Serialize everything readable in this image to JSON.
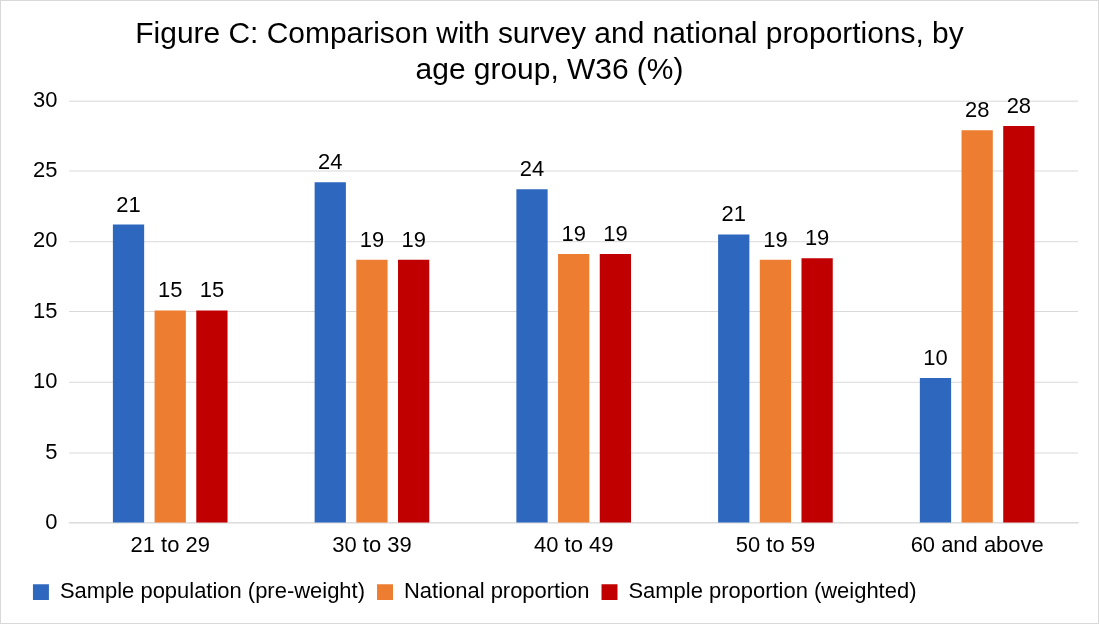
{
  "chart_data": {
    "type": "bar",
    "title": "Figure C: Comparison with survey and national proportions, by age group, W36 (%)",
    "categories": [
      "21 to 29",
      "30 to 39",
      "40 to 49",
      "50 to 59",
      "60 and above"
    ],
    "series": [
      {
        "name": "Sample population (pre-weight)",
        "color": "#2e67be",
        "values": [
          21.2,
          24.2,
          23.7,
          20.5,
          10.3
        ],
        "value_labels": [
          "21",
          "24",
          "24",
          "21",
          "10"
        ]
      },
      {
        "name": "National proportion",
        "color": "#ed7d31",
        "values": [
          15.1,
          18.7,
          19.1,
          18.7,
          27.9
        ],
        "value_labels": [
          "15",
          "19",
          "19",
          "19",
          "28"
        ]
      },
      {
        "name": "Sample proportion (weighted)",
        "color": "#c00000",
        "values": [
          15.1,
          18.7,
          19.1,
          18.8,
          28.2
        ],
        "value_labels": [
          "15",
          "19",
          "19",
          "19",
          "28"
        ]
      }
    ],
    "ylim": [
      0,
      30
    ],
    "yticks": [
      0,
      5,
      10,
      15,
      20,
      25,
      30
    ],
    "grid": "y",
    "legend": "bottom"
  }
}
